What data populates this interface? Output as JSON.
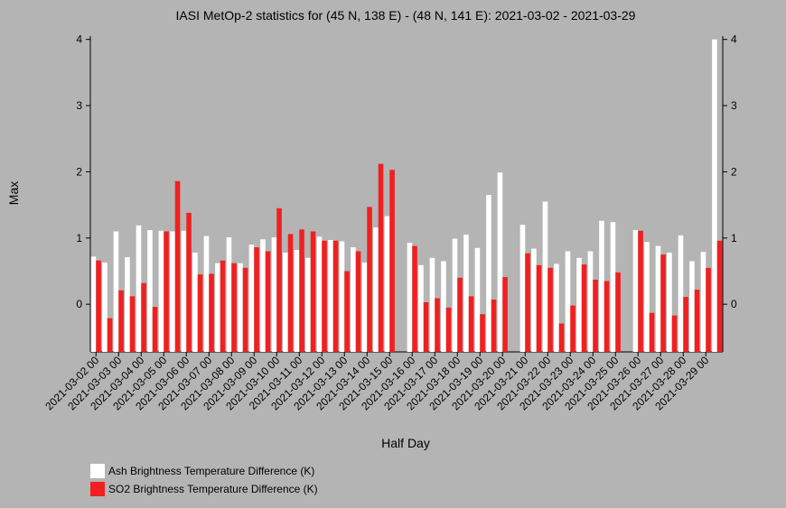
{
  "chart_data": {
    "type": "bar",
    "title": "IASI MetOp-2 statistics for (45 N, 138 E) - (48 N, 141 E): 2021-03-02 - 2021-03-29",
    "xlabel": "Half Day",
    "ylabel": "Max",
    "ylim": [
      -0.72,
      4.05
    ],
    "yticks": [
      "0",
      "1",
      "2",
      "3",
      "4"
    ],
    "categories": [
      "2021-03-02 00",
      "2021-03-02 12",
      "2021-03-03 00",
      "2021-03-03 12",
      "2021-03-04 00",
      "2021-03-04 12",
      "2021-03-05 00",
      "2021-03-05 12",
      "2021-03-06 00",
      "2021-03-06 12",
      "2021-03-07 00",
      "2021-03-07 12",
      "2021-03-08 00",
      "2021-03-08 12",
      "2021-03-09 00",
      "2021-03-09 12",
      "2021-03-10 00",
      "2021-03-10 12",
      "2021-03-11 00",
      "2021-03-11 12",
      "2021-03-12 00",
      "2021-03-12 12",
      "2021-03-13 00",
      "2021-03-13 12",
      "2021-03-14 00",
      "2021-03-14 12",
      "2021-03-15 00",
      "2021-03-15 12",
      "2021-03-16 00",
      "2021-03-16 12",
      "2021-03-17 00",
      "2021-03-17 12",
      "2021-03-18 00",
      "2021-03-18 12",
      "2021-03-19 00",
      "2021-03-19 12",
      "2021-03-20 00",
      "2021-03-20 12",
      "2021-03-21 00",
      "2021-03-21 12",
      "2021-03-22 00",
      "2021-03-22 12",
      "2021-03-23 00",
      "2021-03-23 12",
      "2021-03-24 00",
      "2021-03-24 12",
      "2021-03-25 00",
      "2021-03-25 12",
      "2021-03-26 00",
      "2021-03-26 12",
      "2021-03-27 00",
      "2021-03-27 12",
      "2021-03-28 00",
      "2021-03-28 12",
      "2021-03-29 00",
      "2021-03-29 12"
    ],
    "xtick_labels": [
      "2021-03-02 00",
      "2021-03-03 00",
      "2021-03-04 00",
      "2021-03-05 00",
      "2021-03-06 00",
      "2021-03-07 00",
      "2021-03-08 00",
      "2021-03-09 00",
      "2021-03-10 00",
      "2021-03-11 00",
      "2021-03-12 00",
      "2021-03-13 00",
      "2021-03-14 00",
      "2021-03-15 00",
      "2021-03-16 00",
      "2021-03-17 00",
      "2021-03-18 00",
      "2021-03-19 00",
      "2021-03-20 00",
      "2021-03-21 00",
      "2021-03-22 00",
      "2021-03-23 00",
      "2021-03-24 00",
      "2021-03-25 00",
      "2021-03-26 00",
      "2021-03-27 00",
      "2021-03-28 00",
      "2021-03-29 00"
    ],
    "series": [
      {
        "name": "Ash Brightness Temperature Difference (K)",
        "color": "#ffffff",
        "values": [
          0.72,
          0.63,
          1.1,
          0.71,
          1.19,
          1.12,
          1.11,
          1.1,
          1.11,
          0.78,
          1.03,
          0.62,
          1.01,
          0.62,
          0.9,
          0.98,
          1.01,
          0.78,
          0.82,
          0.7,
          1.02,
          0.97,
          0.95,
          0.86,
          0.63,
          1.16,
          1.33,
          null,
          0.93,
          0.59,
          0.7,
          0.65,
          0.99,
          1.05,
          0.85,
          1.65,
          1.99,
          null,
          1.2,
          0.84,
          1.55,
          0.61,
          0.8,
          0.7,
          0.8,
          1.26,
          1.24,
          null,
          1.12,
          0.94,
          0.88,
          0.78,
          1.04,
          0.65,
          0.79,
          4.0
        ]
      },
      {
        "name": "SO2 Brightness Temperature Difference (K)",
        "color": "#f02020",
        "values": [
          0.66,
          -0.21,
          0.21,
          0.12,
          0.32,
          -0.04,
          1.1,
          1.86,
          1.38,
          0.45,
          0.46,
          0.66,
          0.62,
          0.55,
          0.86,
          0.8,
          1.45,
          1.06,
          1.13,
          1.1,
          0.96,
          0.96,
          0.5,
          0.8,
          1.47,
          2.12,
          2.03,
          null,
          0.88,
          0.03,
          0.09,
          -0.05,
          0.4,
          0.12,
          -0.15,
          0.07,
          0.41,
          null,
          0.77,
          0.59,
          0.55,
          -0.29,
          -0.02,
          0.6,
          0.37,
          0.35,
          0.48,
          null,
          1.11,
          -0.13,
          0.75,
          -0.17,
          0.11,
          0.22,
          0.55,
          0.96
        ]
      }
    ],
    "legend_position": "bottom-left",
    "grid": false
  },
  "colors": {
    "background": "#b4b4b4",
    "ash": "#ffffff",
    "so2": "#f02020",
    "axis": "#000000"
  }
}
